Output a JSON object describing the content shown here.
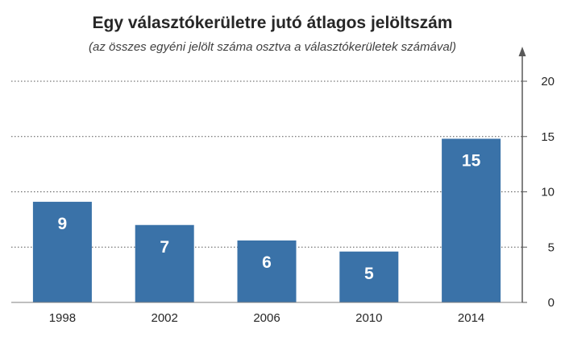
{
  "chart_data": {
    "type": "bar",
    "title": "Egy választókerületre jutó átlagos jelöltszám",
    "subtitle": "(az összes egyéni jelölt száma osztva a választókerületek számával)",
    "categories": [
      "1998",
      "2002",
      "2006",
      "2010",
      "2014"
    ],
    "values": [
      9.1,
      7.0,
      5.6,
      4.6,
      14.8
    ],
    "data_labels": [
      "9",
      "7",
      "6",
      "5",
      "15"
    ],
    "ylim": [
      0,
      20
    ],
    "yticks": [
      0,
      5,
      10,
      15,
      20
    ],
    "ytick_labels": [
      "0",
      "5",
      "10",
      "15",
      "20"
    ],
    "y_axis_side": "right",
    "grid": true,
    "bar_color": "#3a72a8"
  }
}
